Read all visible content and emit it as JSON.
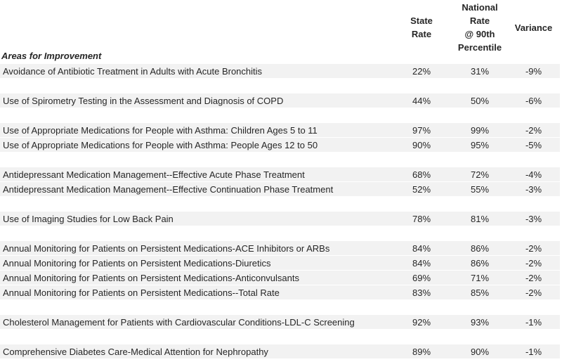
{
  "table": {
    "colors": {
      "row_shade": "#f2f2f2",
      "text": "#262626"
    },
    "header": {
      "state_lines": [
        "State",
        "Rate"
      ],
      "national_lines": [
        "National Rate",
        "@ 90th",
        "Percentile"
      ],
      "variance_lines": [
        "Variance"
      ]
    },
    "section_label": "Areas for Improvement",
    "rows": [
      {
        "measure": "Avoidance of Antibiotic Treatment in Adults with Acute Bronchitis",
        "state": "22%",
        "national": "31%",
        "variance": "-9%"
      },
      {
        "measure": "",
        "state": "",
        "national": "",
        "variance": ""
      },
      {
        "measure": "Use of Spirometry Testing in the Assessment and Diagnosis of COPD",
        "state": "44%",
        "national": "50%",
        "variance": "-6%"
      },
      {
        "measure": "",
        "state": "",
        "national": "",
        "variance": ""
      },
      {
        "measure": "Use of Appropriate Medications for People with Asthma: Children Ages 5 to 11",
        "state": "97%",
        "national": "99%",
        "variance": "-2%"
      },
      {
        "measure": "Use of Appropriate Medications for People with Asthma: People Ages 12 to 50",
        "state": "90%",
        "national": "95%",
        "variance": "-5%"
      },
      {
        "measure": "",
        "state": "",
        "national": "",
        "variance": ""
      },
      {
        "measure": "Antidepressant Medication Management--Effective Acute Phase Treatment",
        "state": "68%",
        "national": "72%",
        "variance": "-4%"
      },
      {
        "measure": "Antidepressant Medication Management--Effective Continuation Phase Treatment",
        "state": "52%",
        "national": "55%",
        "variance": "-3%"
      },
      {
        "measure": "",
        "state": "",
        "national": "",
        "variance": ""
      },
      {
        "measure": "Use of Imaging Studies for Low Back Pain",
        "state": "78%",
        "national": "81%",
        "variance": "-3%"
      },
      {
        "measure": "",
        "state": "",
        "national": "",
        "variance": ""
      },
      {
        "measure": "Annual Monitoring for Patients on Persistent Medications-ACE Inhibitors or ARBs",
        "state": "84%",
        "national": "86%",
        "variance": "-2%"
      },
      {
        "measure": "Annual Monitoring for Patients on Persistent Medications-Diuretics",
        "state": "84%",
        "national": "86%",
        "variance": "-2%"
      },
      {
        "measure": "Annual Monitoring for Patients on Persistent Medications-Anticonvulsants",
        "state": "69%",
        "national": "71%",
        "variance": "-2%"
      },
      {
        "measure": "Annual Monitoring for Patients on Persistent Medications--Total Rate",
        "state": "83%",
        "national": "85%",
        "variance": "-2%"
      },
      {
        "measure": "",
        "state": "",
        "national": "",
        "variance": ""
      },
      {
        "measure": "Cholesterol Management for Patients with Cardiovascular Conditions-LDL-C Screening",
        "state": "92%",
        "national": "93%",
        "variance": "-1%"
      },
      {
        "measure": "",
        "state": "",
        "national": "",
        "variance": ""
      },
      {
        "measure": "Comprehensive Diabetes Care-Medical Attention for Nephropathy",
        "state": "89%",
        "national": "90%",
        "variance": "-1%"
      }
    ]
  }
}
